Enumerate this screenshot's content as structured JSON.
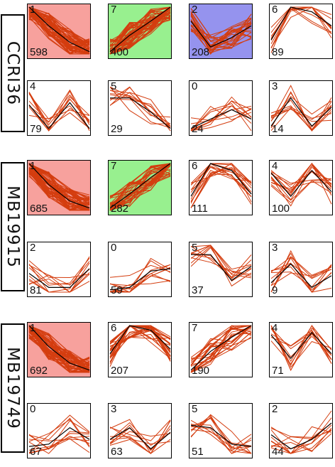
{
  "colors": {
    "profile_line": "#d43d0f",
    "mean_line": "#000000",
    "red_bg": "#f7a19d",
    "green_bg": "#98f08f",
    "blue_bg": "#9593ee",
    "white_bg": "#ffffff"
  },
  "chart_data": {
    "type": "line",
    "title": "",
    "groups": [
      {
        "name": "CCRI36",
        "panels": [
          {
            "profile": "1",
            "count": "598",
            "bg": "red",
            "mean": [
              1,
              0.6,
              0.25,
              0.05
            ]
          },
          {
            "profile": "7",
            "count": "400",
            "bg": "green",
            "mean": [
              0.05,
              0.4,
              0.7,
              1
            ]
          },
          {
            "profile": "2",
            "count": "208",
            "bg": "blue",
            "mean": [
              0.7,
              0.15,
              0.35,
              0.6
            ]
          },
          {
            "profile": "6",
            "count": "89",
            "bg": "white",
            "mean": [
              0.3,
              1,
              0.9,
              0.6
            ]
          },
          {
            "profile": "4",
            "count": "79",
            "bg": "white",
            "mean": [
              0.55,
              0.05,
              0.6,
              0.05
            ]
          },
          {
            "profile": "5",
            "count": "29",
            "bg": "white",
            "mean": [
              0.7,
              0.7,
              0.4,
              0.05
            ]
          },
          {
            "profile": "0",
            "count": "24",
            "bg": "white",
            "mean": [
              0.05,
              0.25,
              0.45,
              0.25
            ]
          },
          {
            "profile": "3",
            "count": "14",
            "bg": "white",
            "mean": [
              0.1,
              0.7,
              0.1,
              0.5
            ]
          }
        ]
      },
      {
        "name": "MB19915",
        "panels": [
          {
            "profile": "1",
            "count": "685",
            "bg": "red",
            "mean": [
              1,
              0.55,
              0.2,
              0.05
            ]
          },
          {
            "profile": "7",
            "count": "282",
            "bg": "green",
            "mean": [
              0.05,
              0.35,
              0.7,
              1
            ]
          },
          {
            "profile": "6",
            "count": "111",
            "bg": "white",
            "mean": [
              0.3,
              1,
              0.85,
              0.35
            ]
          },
          {
            "profile": "4",
            "count": "100",
            "bg": "white",
            "mean": [
              0.8,
              0.3,
              0.85,
              0.4
            ]
          },
          {
            "profile": "2",
            "count": "81",
            "bg": "white",
            "mean": [
              0.4,
              0.1,
              0.1,
              0.5
            ]
          },
          {
            "profile": "0",
            "count": "59",
            "bg": "white",
            "mean": [
              0.05,
              0.1,
              0.45,
              0.5
            ]
          },
          {
            "profile": "5",
            "count": "37",
            "bg": "white",
            "mean": [
              0.8,
              0.8,
              0.25,
              0.55
            ]
          },
          {
            "profile": "3",
            "count": "9",
            "bg": "white",
            "mean": [
              0.2,
              0.6,
              0.1,
              0.35
            ]
          }
        ]
      },
      {
        "name": "MB19749",
        "panels": [
          {
            "profile": "1",
            "count": "692",
            "bg": "red",
            "mean": [
              1,
              0.55,
              0.2,
              0.05
            ]
          },
          {
            "profile": "6",
            "count": "207",
            "bg": "white",
            "mean": [
              0.4,
              1,
              0.9,
              0.5
            ]
          },
          {
            "profile": "7",
            "count": "190",
            "bg": "white",
            "mean": [
              0.05,
              0.45,
              0.75,
              1
            ]
          },
          {
            "profile": "4",
            "count": "71",
            "bg": "white",
            "mean": [
              0.8,
              0.3,
              0.85,
              0.4
            ]
          },
          {
            "profile": "0",
            "count": "67",
            "bg": "white",
            "mean": [
              0.15,
              0.2,
              0.55,
              0.3
            ]
          },
          {
            "profile": "3",
            "count": "63",
            "bg": "white",
            "mean": [
              0.3,
              0.55,
              0.1,
              0.45
            ]
          },
          {
            "profile": "5",
            "count": "51",
            "bg": "white",
            "mean": [
              0.6,
              0.55,
              0.2,
              0.15
            ]
          },
          {
            "profile": "2",
            "count": "44",
            "bg": "white",
            "mean": [
              0.4,
              0.1,
              0.3,
              0.65
            ]
          }
        ]
      }
    ]
  }
}
